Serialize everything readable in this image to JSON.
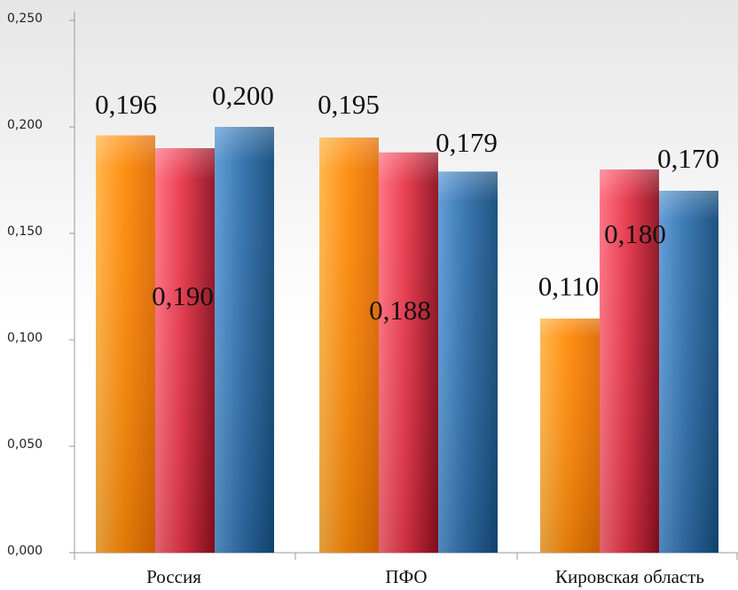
{
  "chart_data": {
    "type": "bar",
    "categories": [
      "Россия",
      "ПФО",
      "Кировская область"
    ],
    "series": [
      {
        "values": [
          0.196,
          0.195,
          0.11
        ],
        "labels": [
          "0,196",
          "0,195",
          "0,110"
        ]
      },
      {
        "values": [
          0.19,
          0.188,
          0.18
        ],
        "labels": [
          "0,190",
          "0,188",
          "0,180"
        ]
      },
      {
        "values": [
          0.2,
          0.179,
          0.17
        ],
        "labels": [
          "0,200",
          "0,179",
          "0,170"
        ]
      }
    ],
    "ylim": [
      0,
      0.25
    ],
    "yticks": [
      0,
      0.05,
      0.1,
      0.15,
      0.2,
      0.25
    ],
    "ytick_labels": [
      "0,000",
      "0,050",
      "0,100",
      "0,150",
      "0,200",
      "0,250"
    ],
    "title": "",
    "xlabel": "",
    "ylabel": "",
    "grid": false,
    "legend": "none",
    "colors": {
      "series": [
        {
          "light": "#ffb347",
          "main": "#ff8c0a",
          "dark": "#e06a00"
        },
        {
          "light": "#ff6f7f",
          "main": "#e8364a",
          "dark": "#8e0e1f"
        },
        {
          "light": "#5a9ad4",
          "main": "#3271ad",
          "dark": "#134a7a"
        }
      ],
      "background_top": "#e6e6e6",
      "background_bottom": "#ffffff",
      "axis": "#9a9a9a"
    }
  }
}
